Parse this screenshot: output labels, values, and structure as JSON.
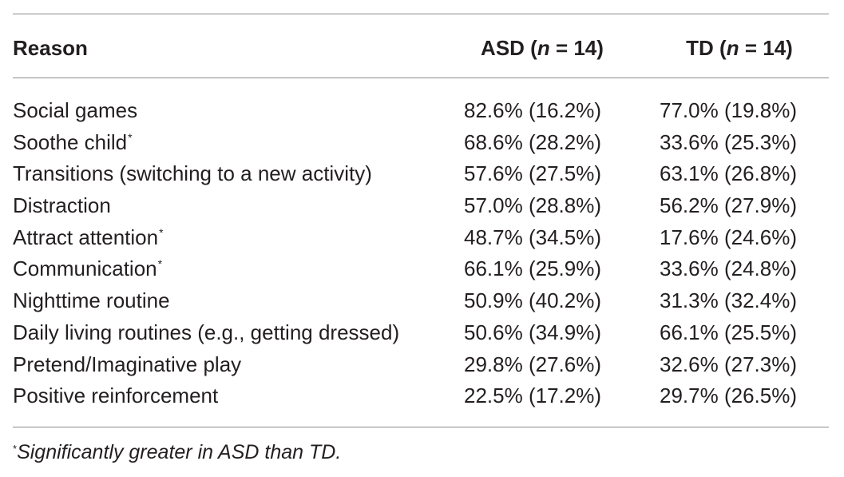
{
  "table": {
    "headers": {
      "reason": "Reason",
      "asd_prefix": "ASD (",
      "asd_n": "n",
      "asd_suffix": " = 14)",
      "td_prefix": "TD (",
      "td_n": "n",
      "td_suffix": " = 14)"
    },
    "rows": [
      {
        "reason": "Social games",
        "asterisk": "",
        "asd": "82.6% (16.2%)",
        "td": "77.0% (19.8%)"
      },
      {
        "reason": "Soothe child",
        "asterisk": "*",
        "asd": "68.6% (28.2%)",
        "td": "33.6% (25.3%)"
      },
      {
        "reason": "Transitions (switching to a new activity)",
        "asterisk": "",
        "asd": "57.6% (27.5%)",
        "td": "63.1% (26.8%)"
      },
      {
        "reason": "Distraction",
        "asterisk": "",
        "asd": "57.0% (28.8%)",
        "td": "56.2% (27.9%)"
      },
      {
        "reason": "Attract attention",
        "asterisk": "*",
        "asd": "48.7% (34.5%)",
        "td": "17.6% (24.6%)"
      },
      {
        "reason": "Communication",
        "asterisk": "*",
        "asd": "66.1% (25.9%)",
        "td": "33.6% (24.8%)"
      },
      {
        "reason": "Nighttime routine",
        "asterisk": "",
        "asd": "50.9% (40.2%)",
        "td": "31.3% (32.4%)"
      },
      {
        "reason": "Daily living routines (e.g., getting dressed)",
        "asterisk": "",
        "asd": "50.6% (34.9%)",
        "td": "66.1% (25.5%)"
      },
      {
        "reason": "Pretend/Imaginative play",
        "asterisk": "",
        "asd": "29.8% (27.6%)",
        "td": "32.6% (27.3%)"
      },
      {
        "reason": "Positive reinforcement",
        "asterisk": "",
        "asd": "22.5% (17.2%)",
        "td": "29.7% (26.5%)"
      }
    ],
    "footnote": {
      "marker": "*",
      "text": "Significantly greater in ASD than TD."
    }
  }
}
